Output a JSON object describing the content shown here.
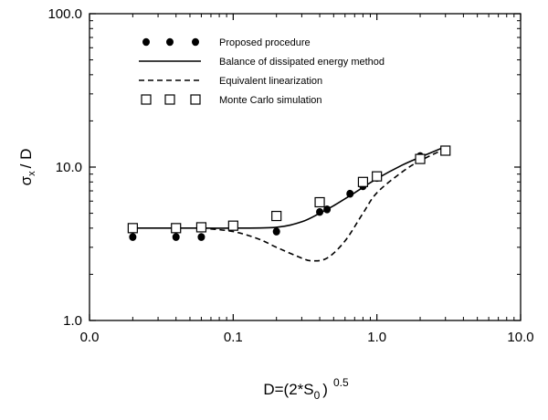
{
  "chart_data": {
    "type": "scatter",
    "title": "",
    "xlabel": {
      "main": "D=(2*S",
      "sub": "0",
      "close": ")",
      "sup": "0.5"
    },
    "ylabel": {
      "sigma": "σ",
      "sub": "x",
      "rest": "/ D"
    },
    "x_scale": "log",
    "y_scale": "log",
    "xlim": [
      0.01,
      10
    ],
    "ylim": [
      1,
      100
    ],
    "x_ticks": [
      {
        "value": 0.01,
        "label": "0.0"
      },
      {
        "value": 0.1,
        "label": "0.1"
      },
      {
        "value": 1,
        "label": "1.0"
      },
      {
        "value": 10,
        "label": "10.0"
      }
    ],
    "y_ticks": [
      {
        "value": 1,
        "label": "1.0"
      },
      {
        "value": 10,
        "label": "10.0"
      },
      {
        "value": 100,
        "label": "100.0"
      }
    ],
    "grid": false,
    "legend_position": "top-left",
    "series": [
      {
        "name": "Proposed procedure",
        "style": "filled-circle",
        "color": "#000000",
        "points": [
          [
            0.02,
            3.5
          ],
          [
            0.04,
            3.5
          ],
          [
            0.06,
            3.5
          ],
          [
            0.2,
            3.8
          ],
          [
            0.4,
            5.1
          ],
          [
            0.45,
            5.3
          ],
          [
            0.65,
            6.7
          ],
          [
            0.8,
            7.5
          ],
          [
            1.0,
            8.5
          ],
          [
            2.0,
            11.8
          ]
        ]
      },
      {
        "name": "Balance of dissipated energy method",
        "style": "solid-line",
        "color": "#000000",
        "points": [
          [
            0.02,
            4.0
          ],
          [
            0.06,
            4.0
          ],
          [
            0.1,
            4.0
          ],
          [
            0.2,
            4.05
          ],
          [
            0.3,
            4.4
          ],
          [
            0.4,
            5.0
          ],
          [
            0.5,
            5.6
          ],
          [
            0.7,
            6.8
          ],
          [
            1.0,
            8.4
          ],
          [
            1.5,
            10.3
          ],
          [
            2.0,
            11.6
          ],
          [
            3.0,
            13.6
          ]
        ]
      },
      {
        "name": "Equivalent linearization",
        "style": "dashed-line",
        "color": "#000000",
        "points": [
          [
            0.06,
            4.0
          ],
          [
            0.1,
            3.8
          ],
          [
            0.15,
            3.4
          ],
          [
            0.2,
            3.0
          ],
          [
            0.3,
            2.55
          ],
          [
            0.35,
            2.45
          ],
          [
            0.45,
            2.55
          ],
          [
            0.6,
            3.3
          ],
          [
            0.8,
            5.0
          ],
          [
            1.0,
            6.8
          ],
          [
            1.5,
            9.3
          ],
          [
            2.0,
            11.0
          ],
          [
            3.0,
            13.2
          ]
        ]
      },
      {
        "name": "Monte Carlo simulation",
        "style": "open-square",
        "color": "#000000",
        "points": [
          [
            0.02,
            4.0
          ],
          [
            0.04,
            4.0
          ],
          [
            0.06,
            4.05
          ],
          [
            0.1,
            4.15
          ],
          [
            0.2,
            4.8
          ],
          [
            0.4,
            5.9
          ],
          [
            0.8,
            8.0
          ],
          [
            1.0,
            8.7
          ],
          [
            2.0,
            11.3
          ],
          [
            3.0,
            12.8
          ]
        ]
      }
    ]
  }
}
